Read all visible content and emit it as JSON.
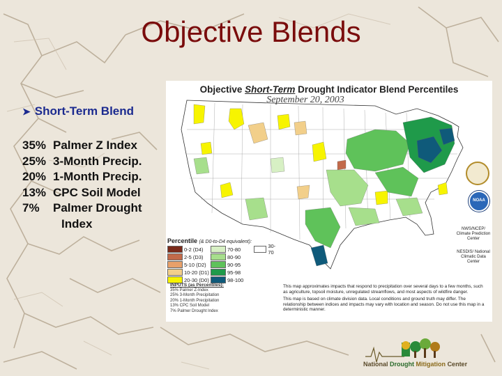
{
  "slide": {
    "title": "Objective Blends",
    "bullet": "Short-Term Blend",
    "weights": [
      {
        "pct": "35%",
        "label": "Palmer Z Index"
      },
      {
        "pct": "25%",
        "label": "3-Month Precip."
      },
      {
        "pct": "20%",
        "label": "1-Month Precip."
      },
      {
        "pct": "13%",
        "label": "CPC Soil Model"
      },
      {
        "pct": "7%",
        "label": "Palmer Drought"
      }
    ],
    "weights_cont": "Index"
  },
  "map": {
    "title_pre": "Objective ",
    "title_term": "Short-Term",
    "title_post": " Drought Indicator Blend Percentiles",
    "date": "September 20, 2003",
    "legend_title": "Percentile",
    "legend_sub": "(& D0-to-D4 equivalent):",
    "legend": [
      {
        "label": "0-2 (D4)",
        "color": "#7a2a1a"
      },
      {
        "label": "2-5 (D3)",
        "color": "#c26a4a"
      },
      {
        "label": "5-10 (D2)",
        "color": "#e8a06a"
      },
      {
        "label": "10-20 (D1)",
        "color": "#f2cf8a"
      },
      {
        "label": "20-30 (D0)",
        "color": "#f7f400"
      },
      {
        "label": "70-80",
        "color": "#d7f0c4"
      },
      {
        "label": "80-90",
        "color": "#a7df8c"
      },
      {
        "label": "90-95",
        "color": "#5fc25a"
      },
      {
        "label": "95-98",
        "color": "#1f9a4a"
      },
      {
        "label": "98-100",
        "color": "#0f5a7a"
      },
      {
        "label": "30-70",
        "color": "#ffffff"
      }
    ],
    "blend_head": "INPUTS (as Percentiles):",
    "blend_lines": [
      "35% Palmer Z-Index",
      "25% 3-Month Precipitation",
      "20% 1-Month Precipitation",
      "13% CPC Soil Model",
      "7% Palmer Drought Index"
    ],
    "note1": "This map approximates impacts that respond to precipitation over several days to a few months, such as agriculture, topsoil moisture, unregulated streamflows, and most aspects of wildfire danger.",
    "note2": "This map is based on climate division data. Local conditions and ground truth may differ. The relationship between indices and impacts may vary with location and season. Do not use this map in a deterministic manner.",
    "cpc_label": "NWS/NCEP/ Climate Prediction Center",
    "ncdc_label": "NESDIS/ National Climatic Data Center",
    "noaa_label": "NOAA"
  },
  "footer": {
    "n": "National",
    "d": "Drought",
    "m": "Mitigation",
    "c": "Center"
  }
}
